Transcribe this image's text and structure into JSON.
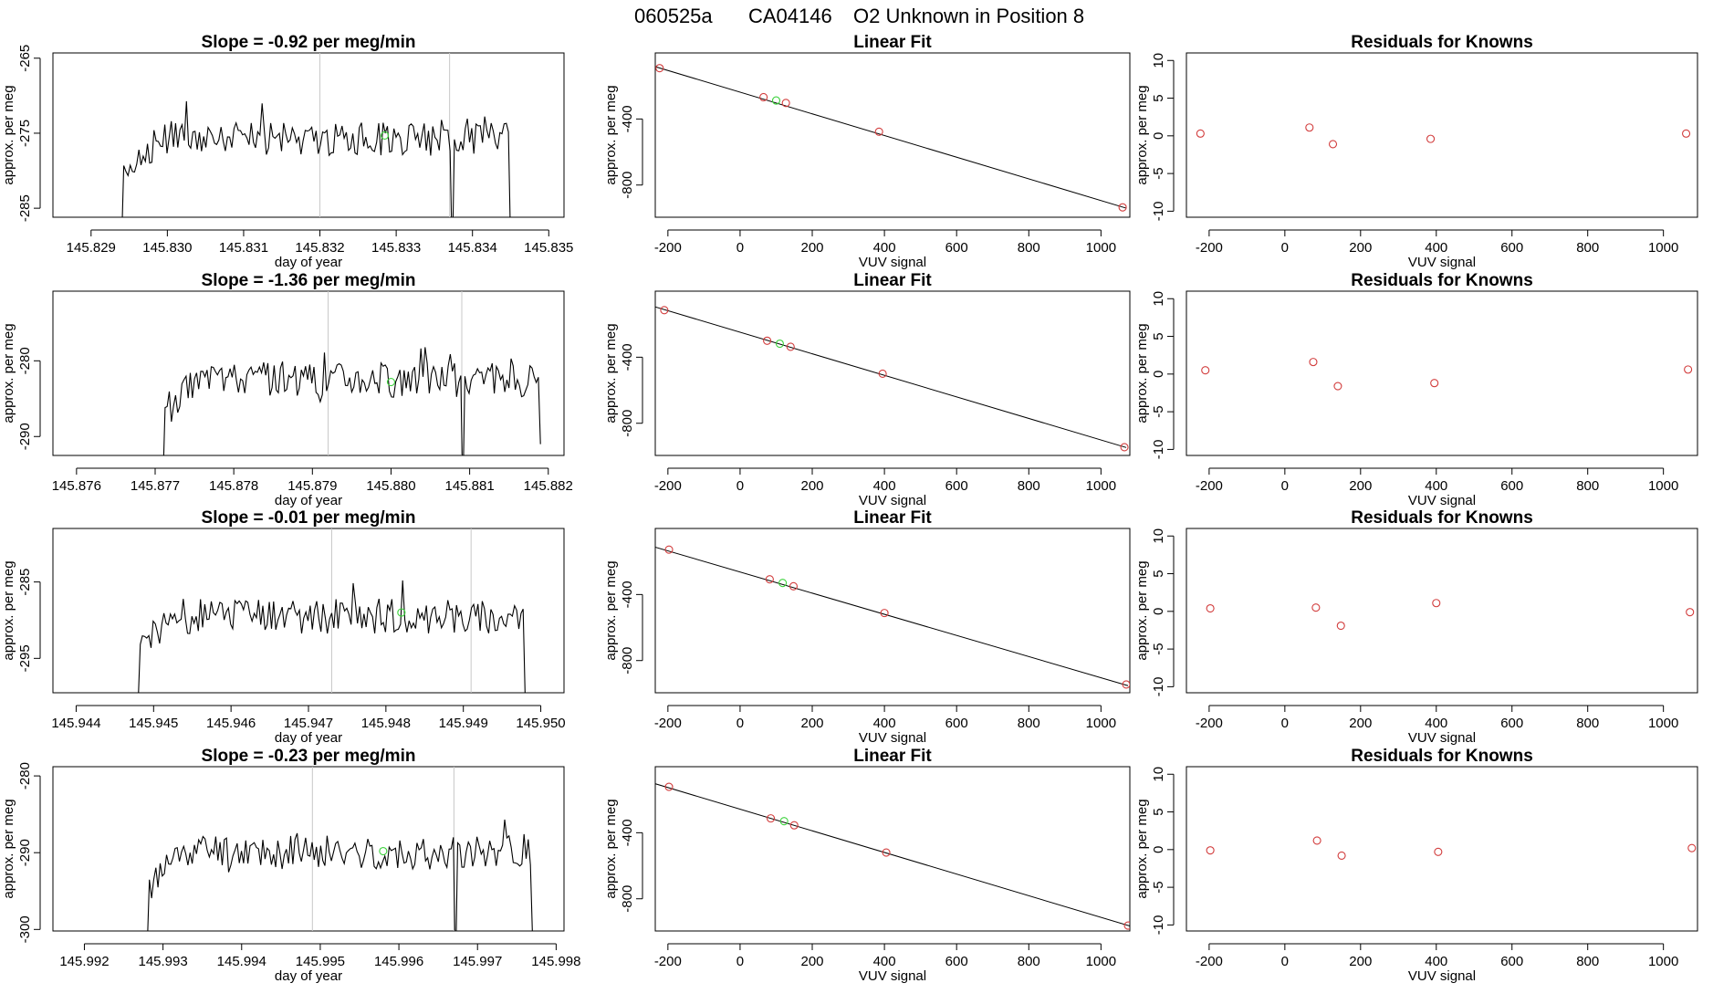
{
  "title": {
    "run": "060525a",
    "tank": "CA04146",
    "description": "O2 Unknown in Position  8"
  },
  "colors": {
    "known": "#d23c3c",
    "unknown": "#3cd23c",
    "line": "#000000",
    "marker": "#c8c8c8"
  },
  "chart_data": [
    {
      "row": 1,
      "type": "line",
      "title": "Slope =  -0.92  per meg/min",
      "xlabel": "day of year",
      "ylabel": "approx. per meg",
      "xlim": [
        145.8285,
        145.8352
      ],
      "ylim": [
        -286.2,
        -264.3
      ],
      "xticks": [
        "145.829",
        "145.830",
        "145.831",
        "145.832",
        "145.833",
        "145.834",
        "145.835"
      ],
      "xtick_values": [
        145.829,
        145.83,
        145.831,
        145.832,
        145.833,
        145.834,
        145.835
      ],
      "yticks": [
        "-285",
        "-275",
        "-265"
      ],
      "ytick_values": [
        -285,
        -275,
        -265
      ],
      "vlines": [
        145.832,
        145.8337
      ],
      "series_start": 145.8294,
      "series_end": 145.8345,
      "series_mean": -275.8,
      "series_amp": 2.2,
      "series_drop_start": -290,
      "series_drop_end": -290,
      "series_dips": [
        145.8337
      ],
      "unknown_point": {
        "x": 145.83285,
        "y": -275.3
      }
    },
    {
      "row": 1,
      "type": "scatter",
      "title": "Linear Fit",
      "xlabel": "VUV signal",
      "ylabel": "approx. per meg",
      "xlim": [
        -235,
        1080
      ],
      "ylim": [
        -995,
        0
      ],
      "xticks": [
        "-200",
        "0",
        "200",
        "400",
        "600",
        "800",
        "1000"
      ],
      "xtick_values": [
        -200,
        0,
        200,
        400,
        600,
        800,
        1000
      ],
      "yticks": [
        "-800",
        "-400"
      ],
      "ytick_values": [
        -800,
        -400
      ],
      "fit": {
        "x": [
          -240,
          1070
        ],
        "y": [
          -80,
          -940
        ]
      },
      "known_points": {
        "x": [
          -223,
          65,
          127,
          385,
          1060
        ],
        "y": [
          -92,
          -268,
          -303,
          -477,
          -935
        ]
      },
      "unknown_points": {
        "x": [
          100
        ],
        "y": [
          -288
        ]
      }
    },
    {
      "row": 1,
      "type": "scatter",
      "title": "Residuals for Knowns",
      "xlabel": "VUV signal",
      "ylabel": "approx. per meg",
      "xlim": [
        -260,
        1090
      ],
      "ylim": [
        -10.8,
        11
      ],
      "xticks": [
        "-200",
        "0",
        "200",
        "400",
        "600",
        "800",
        "1000"
      ],
      "xtick_values": [
        -200,
        0,
        200,
        400,
        600,
        800,
        1000
      ],
      "yticks": [
        "-10",
        "-5",
        "0",
        "5",
        "10"
      ],
      "ytick_values": [
        -10,
        -5,
        0,
        5,
        10
      ],
      "known_points": {
        "x": [
          -223,
          65,
          127,
          385,
          1060
        ],
        "y": [
          0.3,
          1.1,
          -1.1,
          -0.4,
          0.3
        ]
      }
    },
    {
      "row": 2,
      "type": "line",
      "title": "Slope =  -1.36  per meg/min",
      "xlabel": "day of year",
      "ylabel": "approx. per meg",
      "xlim": [
        145.8757,
        145.8822
      ],
      "ylim": [
        -292.5,
        -270.8
      ],
      "xticks": [
        "145.876",
        "145.877",
        "145.878",
        "145.879",
        "145.880",
        "145.881",
        "145.882"
      ],
      "xtick_values": [
        145.876,
        145.877,
        145.878,
        145.879,
        145.88,
        145.881,
        145.882
      ],
      "yticks": [
        "-290",
        "-280"
      ],
      "ytick_values": [
        -290,
        -280
      ],
      "vlines": [
        145.8792,
        145.8809
      ],
      "series_start": 145.8771,
      "series_end": 145.8819,
      "series_mean": -282.5,
      "series_amp": 2.3,
      "series_drop_start": -296,
      "series_drop_end": -291,
      "series_dips": [
        145.8809
      ],
      "unknown_point": {
        "x": 145.88,
        "y": -282.8
      }
    },
    {
      "row": 2,
      "type": "scatter",
      "title": "Linear Fit",
      "xlabel": "VUV signal",
      "ylabel": "approx. per meg",
      "xlim": [
        -235,
        1080
      ],
      "ylim": [
        -995,
        0
      ],
      "xticks": [
        "-200",
        "0",
        "200",
        "400",
        "600",
        "800",
        "1000"
      ],
      "xtick_values": [
        -200,
        0,
        200,
        400,
        600,
        800,
        1000
      ],
      "yticks": [
        "-800",
        "-400"
      ],
      "ytick_values": [
        -800,
        -400
      ],
      "fit": {
        "x": [
          -240,
          1070
        ],
        "y": [
          -92,
          -947
        ]
      },
      "known_points": {
        "x": [
          -210,
          75,
          140,
          395,
          1065
        ],
        "y": [
          -115,
          -300,
          -337,
          -500,
          -945
        ]
      },
      "unknown_points": {
        "x": [
          110
        ],
        "y": [
          -318
        ]
      }
    },
    {
      "row": 2,
      "type": "scatter",
      "title": "Residuals for Knowns",
      "xlabel": "VUV signal",
      "ylabel": "approx. per meg",
      "xlim": [
        -260,
        1090
      ],
      "ylim": [
        -10.8,
        11
      ],
      "xticks": [
        "-200",
        "0",
        "200",
        "400",
        "600",
        "800",
        "1000"
      ],
      "xtick_values": [
        -200,
        0,
        200,
        400,
        600,
        800,
        1000
      ],
      "yticks": [
        "-10",
        "-5",
        "0",
        "5",
        "10"
      ],
      "ytick_values": [
        -10,
        -5,
        0,
        5,
        10
      ],
      "known_points": {
        "x": [
          -210,
          75,
          140,
          395,
          1065
        ],
        "y": [
          0.5,
          1.6,
          -1.6,
          -1.2,
          0.6
        ]
      }
    },
    {
      "row": 3,
      "type": "line",
      "title": "Slope =  -0.01  per meg/min",
      "xlabel": "day of year",
      "ylabel": "approx. per meg",
      "xlim": [
        145.9437,
        145.9503
      ],
      "ylim": [
        -299.5,
        -278.0
      ],
      "xticks": [
        "145.944",
        "145.945",
        "145.946",
        "145.947",
        "145.948",
        "145.949",
        "145.950"
      ],
      "xtick_values": [
        145.944,
        145.945,
        145.946,
        145.947,
        145.948,
        145.949,
        145.95
      ],
      "yticks": [
        "-295",
        "-285"
      ],
      "ytick_values": [
        -295,
        -285
      ],
      "vlines": [
        145.9473,
        145.9491
      ],
      "series_start": 145.9448,
      "series_end": 145.9498,
      "series_mean": -289.5,
      "series_amp": 2.3,
      "series_drop_start": -301,
      "series_drop_end": -301,
      "series_dips": [],
      "unknown_point": {
        "x": 145.9482,
        "y": -289.0
      }
    },
    {
      "row": 3,
      "type": "scatter",
      "title": "Linear Fit",
      "xlabel": "VUV signal",
      "ylabel": "approx. per meg",
      "xlim": [
        -235,
        1080
      ],
      "ylim": [
        -995,
        0
      ],
      "xticks": [
        "-200",
        "0",
        "200",
        "400",
        "600",
        "800",
        "1000"
      ],
      "xtick_values": [
        -200,
        0,
        200,
        400,
        600,
        800,
        1000
      ],
      "yticks": [
        "-800",
        "-400"
      ],
      "ytick_values": [
        -800,
        -400
      ],
      "fit": {
        "x": [
          -240,
          1075
        ],
        "y": [
          -110,
          -952
        ]
      },
      "known_points": {
        "x": [
          -197,
          82,
          148,
          400,
          1070
        ],
        "y": [
          -128,
          -308,
          -350,
          -512,
          -945
        ]
      },
      "unknown_points": {
        "x": [
          118
        ],
        "y": [
          -330
        ]
      }
    },
    {
      "row": 3,
      "type": "scatter",
      "title": "Residuals for Knowns",
      "xlabel": "VUV signal",
      "ylabel": "approx. per meg",
      "xlim": [
        -260,
        1090
      ],
      "ylim": [
        -10.8,
        11
      ],
      "xticks": [
        "-200",
        "0",
        "200",
        "400",
        "600",
        "800",
        "1000"
      ],
      "xtick_values": [
        -200,
        0,
        200,
        400,
        600,
        800,
        1000
      ],
      "yticks": [
        "-10",
        "-5",
        "0",
        "5",
        "10"
      ],
      "ytick_values": [
        -10,
        -5,
        0,
        5,
        10
      ],
      "known_points": {
        "x": [
          -197,
          82,
          148,
          400,
          1070
        ],
        "y": [
          0.4,
          0.5,
          -1.9,
          1.1,
          -0.1
        ]
      }
    },
    {
      "row": 4,
      "type": "line",
      "title": "Slope =  -0.23  per meg/min",
      "xlabel": "day of year",
      "ylabel": "approx. per meg",
      "xlim": [
        145.9916,
        145.9981
      ],
      "ylim": [
        -300.2,
        -278.8
      ],
      "xticks": [
        "145.992",
        "145.993",
        "145.994",
        "145.995",
        "145.996",
        "145.997",
        "145.998"
      ],
      "xtick_values": [
        145.992,
        145.993,
        145.994,
        145.995,
        145.996,
        145.997,
        145.998
      ],
      "yticks": [
        "-300",
        "-290",
        "-280"
      ],
      "ytick_values": [
        -300,
        -290,
        -280
      ],
      "vlines": [
        145.9949,
        145.9967
      ],
      "series_start": 145.9928,
      "series_end": 145.9977,
      "series_mean": -290.0,
      "series_amp": 2.2,
      "series_drop_start": -302,
      "series_drop_end": -301,
      "series_dips": [
        145.9967
      ],
      "unknown_point": {
        "x": 145.9958,
        "y": -289.8
      }
    },
    {
      "row": 4,
      "type": "scatter",
      "title": "Linear Fit",
      "xlabel": "VUV signal",
      "ylabel": "approx. per meg",
      "xlim": [
        -235,
        1080
      ],
      "ylim": [
        -995,
        0
      ],
      "xticks": [
        "-200",
        "0",
        "200",
        "400",
        "600",
        "800",
        "1000"
      ],
      "xtick_values": [
        -200,
        0,
        200,
        400,
        600,
        800,
        1000
      ],
      "yticks": [
        "-800",
        "-400"
      ],
      "ytick_values": [
        -800,
        -400
      ],
      "fit": {
        "x": [
          -240,
          1080
        ],
        "y": [
          -100,
          -965
        ]
      },
      "known_points": {
        "x": [
          -197,
          85,
          150,
          405,
          1075
        ],
        "y": [
          -122,
          -313,
          -355,
          -520,
          -962
        ]
      },
      "unknown_points": {
        "x": [
          122
        ],
        "y": [
          -330
        ]
      }
    },
    {
      "row": 4,
      "type": "scatter",
      "title": "Residuals for Knowns",
      "xlabel": "VUV signal",
      "ylabel": "approx. per meg",
      "xlim": [
        -260,
        1090
      ],
      "ylim": [
        -10.8,
        11
      ],
      "xticks": [
        "-200",
        "0",
        "200",
        "400",
        "600",
        "800",
        "1000"
      ],
      "xtick_values": [
        -200,
        0,
        200,
        400,
        600,
        800,
        1000
      ],
      "yticks": [
        "-10",
        "-5",
        "0",
        "5",
        "10"
      ],
      "ytick_values": [
        -10,
        -5,
        0,
        5,
        10
      ],
      "known_points": {
        "x": [
          -197,
          85,
          150,
          405,
          1075
        ],
        "y": [
          -0.1,
          1.2,
          -0.8,
          -0.3,
          0.2
        ]
      }
    }
  ]
}
